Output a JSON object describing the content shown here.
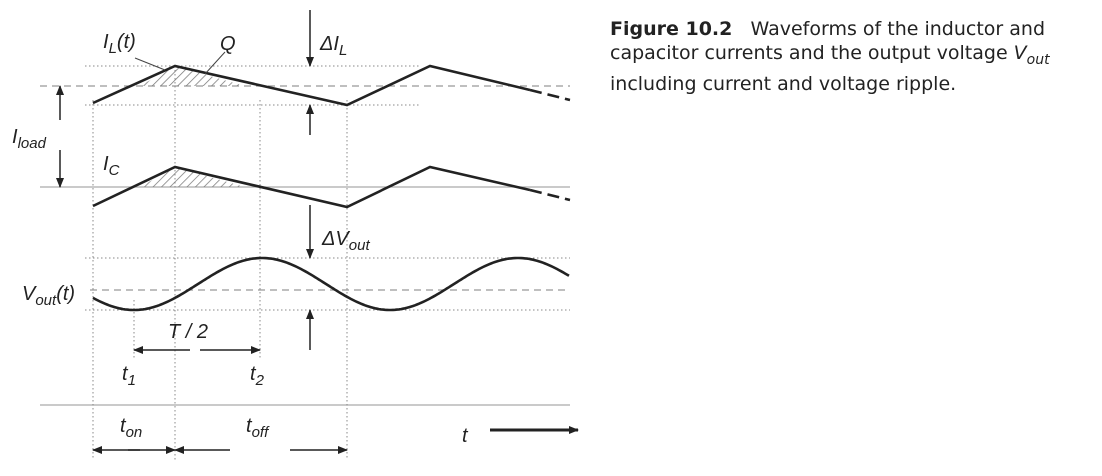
{
  "figure": {
    "labels": {
      "il": {
        "base": "I",
        "sub": "L",
        "suffix": "(t)"
      },
      "q": "Q",
      "dil": {
        "base": "ΔI",
        "sub": "L"
      },
      "iload": {
        "base": "I",
        "sub": "load"
      },
      "ic": {
        "base": "I",
        "sub": "C"
      },
      "dvout": {
        "base": "ΔV",
        "sub": "out"
      },
      "vout": {
        "base": "V",
        "sub": "out",
        "suffix": "(t)"
      },
      "half": "T / 2",
      "t1": {
        "base": "t",
        "sub": "1"
      },
      "t2": {
        "base": "t",
        "sub": "2"
      },
      "ton": {
        "base": "t",
        "sub": "on"
      },
      "toff": {
        "base": "t",
        "sub": "off"
      },
      "t": "t"
    },
    "caption": {
      "label": "Figure 10.2",
      "line1": "Waveforms of the inductor and",
      "line2": "capacitor currents and the output voltage ",
      "line2_var": {
        "base": "V",
        "sub": "out"
      },
      "line3": "including current and voltage ripple."
    }
  }
}
